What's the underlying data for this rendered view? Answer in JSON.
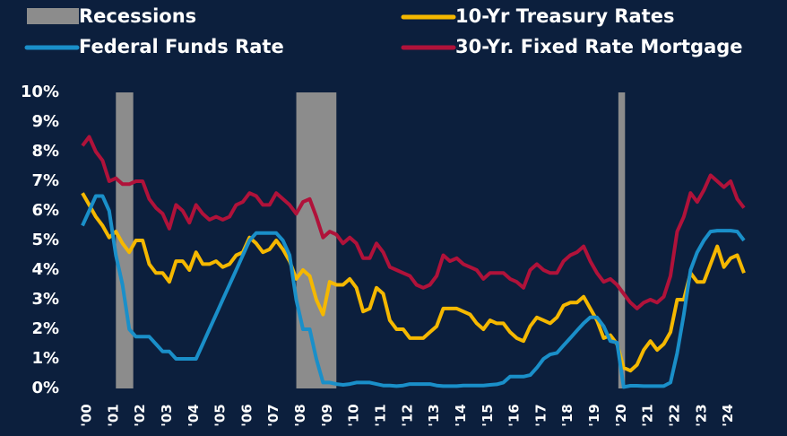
{
  "chart_data": {
    "type": "line",
    "x": [
      2000,
      2000.25,
      2000.5,
      2000.75,
      2001,
      2001.25,
      2001.5,
      2001.75,
      2002,
      2002.25,
      2002.5,
      2002.75,
      2003,
      2003.25,
      2003.5,
      2003.75,
      2004,
      2004.25,
      2004.5,
      2004.75,
      2005,
      2005.25,
      2005.5,
      2005.75,
      2006,
      2006.25,
      2006.5,
      2006.75,
      2007,
      2007.25,
      2007.5,
      2007.75,
      2008,
      2008.25,
      2008.5,
      2008.75,
      2009,
      2009.25,
      2009.5,
      2009.75,
      2010,
      2010.25,
      2010.5,
      2010.75,
      2011,
      2011.25,
      2011.5,
      2011.75,
      2012,
      2012.25,
      2012.5,
      2012.75,
      2013,
      2013.25,
      2013.5,
      2013.75,
      2014,
      2014.25,
      2014.5,
      2014.75,
      2015,
      2015.25,
      2015.5,
      2015.75,
      2016,
      2016.25,
      2016.5,
      2016.75,
      2017,
      2017.25,
      2017.5,
      2017.75,
      2018,
      2018.25,
      2018.5,
      2018.75,
      2019,
      2019.25,
      2019.5,
      2019.75,
      2020,
      2020.25,
      2020.5,
      2020.75,
      2021,
      2021.25,
      2021.5,
      2021.75,
      2022,
      2022.25,
      2022.5,
      2022.75,
      2023,
      2023.25,
      2023.5,
      2023.75,
      2024,
      2024.25,
      2024.5,
      2024.75
    ],
    "series": [
      {
        "name": "10-Yr Treasury Rates",
        "color": "#f5b800",
        "values": [
          6.6,
          6.2,
          5.8,
          5.5,
          5.1,
          5.3,
          4.9,
          4.6,
          5.0,
          5.0,
          4.2,
          3.9,
          3.9,
          3.6,
          4.3,
          4.3,
          4.0,
          4.6,
          4.2,
          4.2,
          4.3,
          4.1,
          4.2,
          4.5,
          4.6,
          5.1,
          4.9,
          4.6,
          4.7,
          5.0,
          4.7,
          4.3,
          3.7,
          4.0,
          3.8,
          3.0,
          2.5,
          3.6,
          3.5,
          3.5,
          3.7,
          3.4,
          2.6,
          2.7,
          3.4,
          3.2,
          2.3,
          2.0,
          2.0,
          1.7,
          1.7,
          1.7,
          1.9,
          2.1,
          2.7,
          2.7,
          2.7,
          2.6,
          2.5,
          2.2,
          2.0,
          2.3,
          2.2,
          2.2,
          1.9,
          1.7,
          1.6,
          2.1,
          2.4,
          2.3,
          2.2,
          2.4,
          2.8,
          2.9,
          2.9,
          3.1,
          2.7,
          2.3,
          1.7,
          1.8,
          1.5,
          0.7,
          0.6,
          0.8,
          1.3,
          1.6,
          1.3,
          1.5,
          1.9,
          3.0,
          3.0,
          3.9,
          3.6,
          3.6,
          4.2,
          4.8,
          4.1,
          4.4,
          4.5,
          3.9
        ]
      },
      {
        "name": "Federal Funds Rate",
        "color": "#1a8fc9",
        "values": [
          5.5,
          6.0,
          6.5,
          6.5,
          6.0,
          4.5,
          3.5,
          2.0,
          1.75,
          1.75,
          1.75,
          1.5,
          1.25,
          1.25,
          1.0,
          1.0,
          1.0,
          1.0,
          1.5,
          2.0,
          2.5,
          3.0,
          3.5,
          4.0,
          4.5,
          5.0,
          5.25,
          5.25,
          5.25,
          5.25,
          5.0,
          4.5,
          3.0,
          2.0,
          2.0,
          1.0,
          0.2,
          0.2,
          0.15,
          0.12,
          0.15,
          0.2,
          0.2,
          0.2,
          0.15,
          0.1,
          0.1,
          0.08,
          0.1,
          0.15,
          0.15,
          0.15,
          0.15,
          0.1,
          0.08,
          0.08,
          0.08,
          0.1,
          0.1,
          0.1,
          0.1,
          0.12,
          0.14,
          0.2,
          0.4,
          0.4,
          0.4,
          0.45,
          0.7,
          1.0,
          1.15,
          1.2,
          1.45,
          1.7,
          1.95,
          2.2,
          2.4,
          2.4,
          2.1,
          1.6,
          1.55,
          0.05,
          0.09,
          0.09,
          0.08,
          0.08,
          0.08,
          0.08,
          0.2,
          1.2,
          2.5,
          4.0,
          4.6,
          5.0,
          5.3,
          5.33,
          5.33,
          5.33,
          5.3,
          5.0
        ]
      },
      {
        "name": "30-Yr. Fixed Rate Mortgage",
        "color": "#b0123a",
        "values": [
          8.2,
          8.5,
          8.0,
          7.7,
          7.0,
          7.1,
          6.9,
          6.9,
          7.0,
          7.0,
          6.4,
          6.1,
          5.9,
          5.4,
          6.2,
          6.0,
          5.6,
          6.2,
          5.9,
          5.7,
          5.8,
          5.7,
          5.8,
          6.2,
          6.3,
          6.6,
          6.5,
          6.2,
          6.2,
          6.6,
          6.4,
          6.2,
          5.9,
          6.3,
          6.4,
          5.8,
          5.1,
          5.3,
          5.2,
          4.9,
          5.1,
          4.9,
          4.4,
          4.4,
          4.9,
          4.6,
          4.1,
          4.0,
          3.9,
          3.8,
          3.5,
          3.4,
          3.5,
          3.8,
          4.5,
          4.3,
          4.4,
          4.2,
          4.1,
          4.0,
          3.7,
          3.9,
          3.9,
          3.9,
          3.7,
          3.6,
          3.4,
          4.0,
          4.2,
          4.0,
          3.9,
          3.9,
          4.3,
          4.5,
          4.6,
          4.8,
          4.3,
          3.9,
          3.6,
          3.7,
          3.5,
          3.2,
          2.9,
          2.7,
          2.9,
          3.0,
          2.9,
          3.1,
          3.8,
          5.3,
          5.8,
          6.6,
          6.3,
          6.7,
          7.2,
          7.0,
          6.8,
          7.0,
          6.4,
          6.1
        ]
      }
    ],
    "recessions": {
      "name": "Recessions",
      "color": "#8c8c8c",
      "periods": [
        [
          2001.25,
          2001.9
        ],
        [
          2008.0,
          2009.5
        ],
        [
          2020.05,
          2020.3
        ]
      ]
    },
    "xlim": [
      2000,
      2024.75
    ],
    "xticks": [
      {
        "value": 2000,
        "label": "'00"
      },
      {
        "value": 2001,
        "label": "'01"
      },
      {
        "value": 2002,
        "label": "'02"
      },
      {
        "value": 2003,
        "label": "'03"
      },
      {
        "value": 2004,
        "label": "'04"
      },
      {
        "value": 2005,
        "label": "'05"
      },
      {
        "value": 2006,
        "label": "'06"
      },
      {
        "value": 2007,
        "label": "'07"
      },
      {
        "value": 2008,
        "label": "'08"
      },
      {
        "value": 2009,
        "label": "'09"
      },
      {
        "value": 2010,
        "label": "'10"
      },
      {
        "value": 2011,
        "label": "'11"
      },
      {
        "value": 2012,
        "label": "'12"
      },
      {
        "value": 2013,
        "label": "'13"
      },
      {
        "value": 2014,
        "label": "'14"
      },
      {
        "value": 2015,
        "label": "'15"
      },
      {
        "value": 2016,
        "label": "'16"
      },
      {
        "value": 2017,
        "label": "'17"
      },
      {
        "value": 2018,
        "label": "'18"
      },
      {
        "value": 2019,
        "label": "'19"
      },
      {
        "value": 2020,
        "label": "'20"
      },
      {
        "value": 2021,
        "label": "'21"
      },
      {
        "value": 2022,
        "label": "'22"
      },
      {
        "value": 2023,
        "label": "'23"
      },
      {
        "value": 2024,
        "label": "'24"
      }
    ],
    "ylim": [
      0,
      10
    ],
    "yticks": [
      {
        "value": 0,
        "label": "0%"
      },
      {
        "value": 1,
        "label": "1%"
      },
      {
        "value": 2,
        "label": "2%"
      },
      {
        "value": 3,
        "label": "3%"
      },
      {
        "value": 4,
        "label": "4%"
      },
      {
        "value": 5,
        "label": "5%"
      },
      {
        "value": 6,
        "label": "6%"
      },
      {
        "value": 7,
        "label": "7%"
      },
      {
        "value": 8,
        "label": "8%"
      },
      {
        "value": 9,
        "label": "9%"
      },
      {
        "value": 10,
        "label": "10%"
      }
    ]
  }
}
